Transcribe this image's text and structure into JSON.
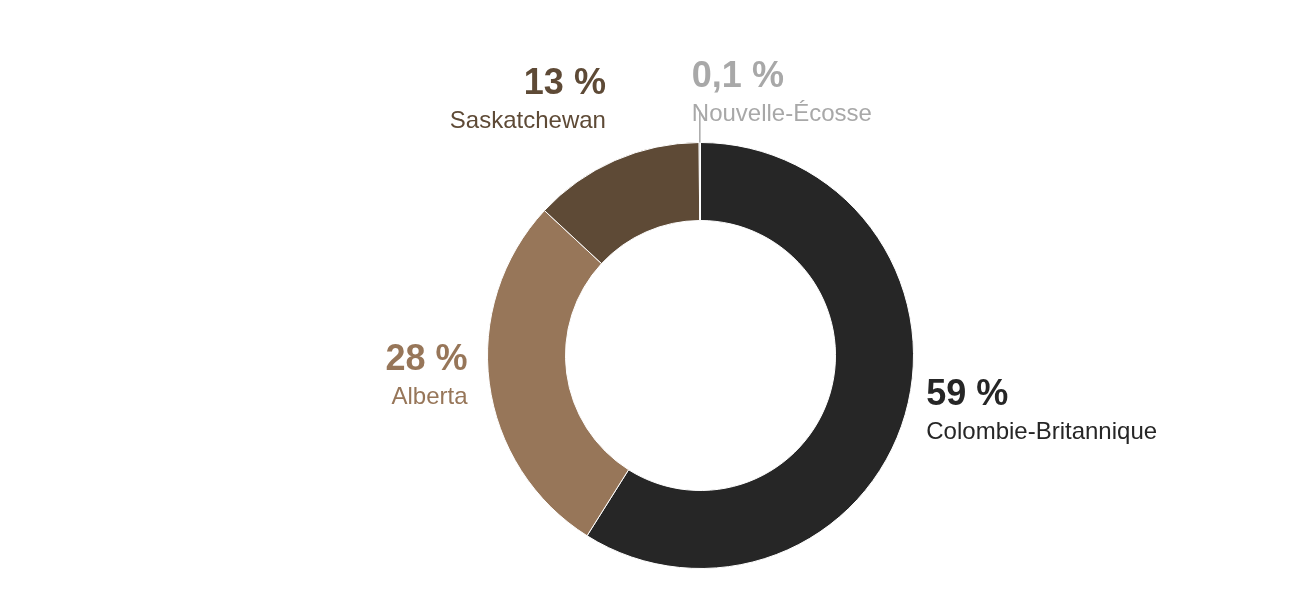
{
  "chart_data": {
    "type": "donut",
    "categories": [
      "Colombie-Britannique",
      "Alberta",
      "Saskatchewan",
      "Nouvelle-Écosse"
    ],
    "values": [
      59,
      28,
      13,
      0.1
    ],
    "value_labels": [
      "59 %",
      "28 %",
      "13 %",
      "0,1 %"
    ],
    "colors": [
      "#262626",
      "#977659",
      "#5e4a36",
      "#a8a8a8"
    ]
  }
}
